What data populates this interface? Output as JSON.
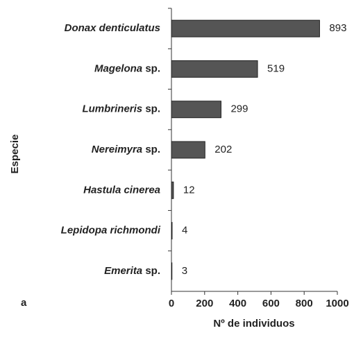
{
  "chart_data": {
    "type": "bar",
    "orientation": "horizontal",
    "panel_label": "a",
    "xlabel": "Nº de individuos",
    "ylabel": "Especie",
    "categories": [
      "Donax denticulatus",
      "Magelona sp.",
      "Lumbrineris sp.",
      "Nereimyra sp.",
      "Hastula cinerea",
      "Lepidopa richmondi",
      "Emerita sp."
    ],
    "values": [
      893,
      519,
      299,
      202,
      12,
      4,
      3
    ],
    "color": "#555555",
    "xlim": [
      0,
      1000
    ],
    "xticks": [
      0,
      200,
      400,
      600,
      800,
      1000
    ]
  }
}
